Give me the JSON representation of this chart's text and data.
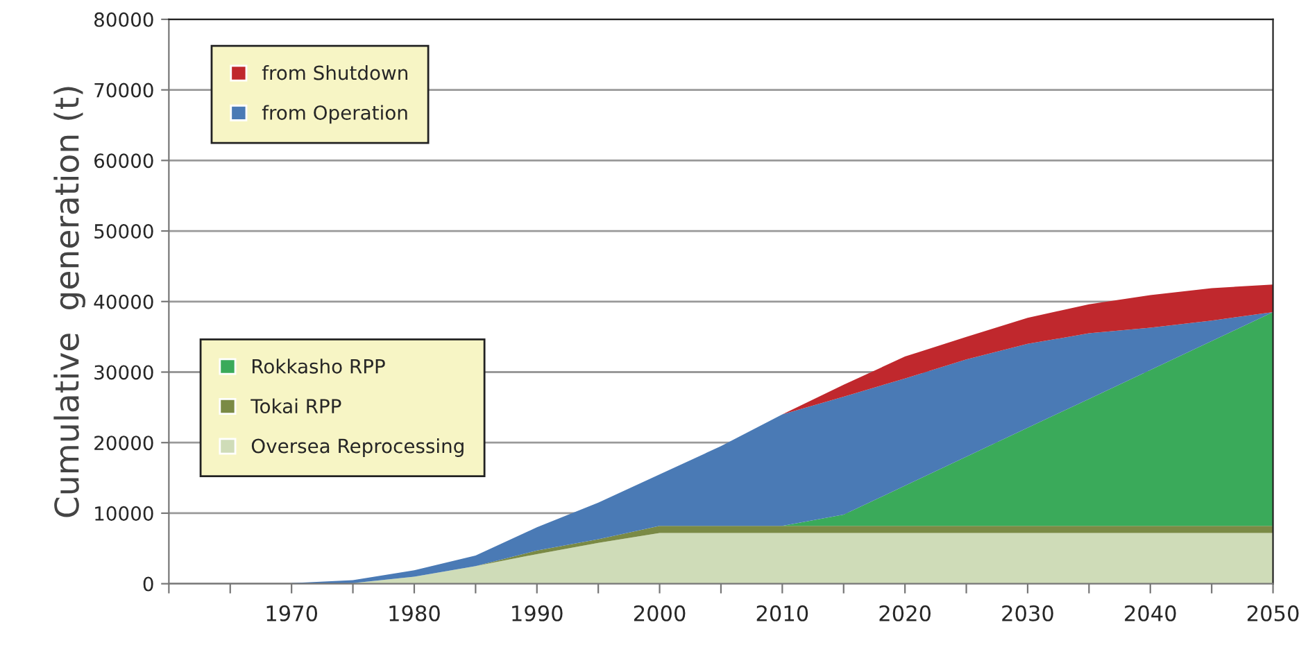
{
  "chart_data": {
    "type": "area",
    "stacked": true,
    "ylabel": "Cumulative  generation (t)",
    "x": [
      1970,
      1975,
      1980,
      1985,
      1990,
      1995,
      2000,
      2005,
      2010,
      2015,
      2020,
      2025,
      2030,
      2035,
      2040,
      2045,
      2050
    ],
    "series": [
      {
        "name": "Oversea Reprocessing",
        "color": "#cfdcb8",
        "values": [
          0,
          100,
          1000,
          2500,
          4200,
          5800,
          7200,
          7200,
          7200,
          7200,
          7200,
          7200,
          7200,
          7200,
          7200,
          7200,
          7200
        ]
      },
      {
        "name": "Tokai RPP",
        "color": "#7a8a45",
        "values": [
          null,
          null,
          0,
          0,
          500,
          500,
          1000,
          1000,
          1000,
          1000,
          1000,
          1000,
          1000,
          1000,
          1000,
          1000,
          1000
        ]
      },
      {
        "name": "Rokkasho RPP",
        "color": "#3aaa5a",
        "values": [
          null,
          null,
          null,
          null,
          null,
          null,
          null,
          null,
          0,
          1600,
          5700,
          9800,
          13900,
          18000,
          22100,
          26200,
          30300
        ]
      },
      {
        "name": "from Operation",
        "color": "#4a7ab5",
        "values": [
          100,
          400,
          900,
          1500,
          3300,
          5200,
          7300,
          11300,
          15800,
          16700,
          15200,
          13800,
          11900,
          9300,
          6000,
          2900,
          0
        ]
      },
      {
        "name": "from Shutdown",
        "color": "#c0282d",
        "values": [
          null,
          null,
          null,
          null,
          null,
          null,
          null,
          null,
          0,
          1700,
          3100,
          3200,
          3700,
          4100,
          4600,
          4600,
          3900
        ]
      }
    ],
    "xlim": [
      1960,
      2050
    ],
    "xticks": [
      {
        "value": 1960,
        "label": null
      },
      {
        "value": 1965,
        "label": null
      },
      1970,
      {
        "value": 1975,
        "label": null
      },
      1980,
      {
        "value": 1985,
        "label": null
      },
      1990,
      {
        "value": 1995,
        "label": null
      },
      2000,
      {
        "value": 2005,
        "label": null
      },
      2010,
      {
        "value": 2015,
        "label": null
      },
      2020,
      {
        "value": 2025,
        "label": null
      },
      2030,
      {
        "value": 2035,
        "label": null
      },
      2040,
      {
        "value": 2045,
        "label": null
      },
      2050
    ],
    "ylim": [
      0,
      80000
    ],
    "yticks": [
      0,
      10000,
      20000,
      30000,
      40000,
      50000,
      60000,
      70000,
      80000
    ],
    "grid": "y",
    "legend": "top left"
  }
}
